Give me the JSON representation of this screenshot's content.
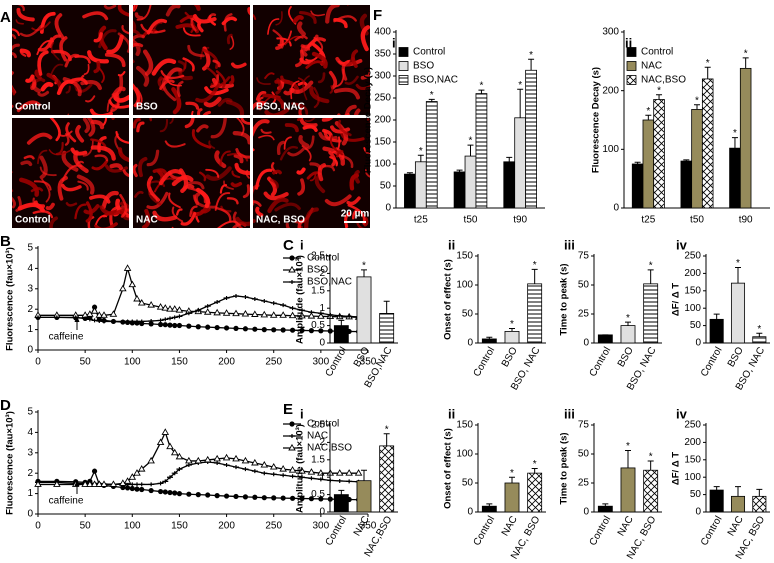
{
  "panel_labels": [
    "A",
    "B",
    "C",
    "D",
    "E",
    "F"
  ],
  "images": {
    "labels": [
      "Control",
      "BSO",
      "BSO, NAC",
      "Control",
      "NAC",
      "NAC, BSO"
    ],
    "scale_bar": "20 µm"
  },
  "chart_data": [
    {
      "type": "line",
      "ylabel": "Fluorescence (fau×10³)",
      "annotation": "caffeine",
      "xlim": [
        0,
        350
      ],
      "xticks": [
        0,
        50,
        100,
        150,
        200,
        250,
        300,
        350
      ],
      "ylim": [
        0,
        5
      ],
      "yticks": [
        0,
        1,
        2,
        3,
        4,
        5
      ],
      "x": [
        0,
        20,
        40,
        50,
        55,
        60,
        65,
        70,
        80,
        90,
        95,
        100,
        105,
        110,
        120,
        130,
        135,
        140,
        145,
        150,
        160,
        170,
        180,
        190,
        200,
        210,
        220,
        230,
        240,
        250,
        260,
        270,
        280,
        290,
        300,
        310,
        320,
        330,
        340
      ],
      "series": [
        {
          "name": "Control",
          "color": "#000000",
          "marker": "circle",
          "values": [
            1.6,
            1.6,
            1.58,
            1.55,
            1.6,
            2.1,
            1.5,
            1.45,
            1.4,
            1.37,
            1.35,
            1.33,
            1.32,
            1.3,
            1.28,
            1.25,
            1.24,
            1.22,
            1.2,
            1.2,
            1.17,
            1.14,
            1.12,
            1.1,
            1.08,
            1.06,
            1.04,
            1.02,
            1.0,
            0.99,
            0.98,
            0.97,
            0.96,
            0.95,
            0.94,
            0.93,
            0.92,
            0.91,
            0.9
          ]
        },
        {
          "name": "BSO",
          "color": "#000000",
          "marker": "triangle",
          "values": [
            1.7,
            1.7,
            1.7,
            1.7,
            1.75,
            1.9,
            1.7,
            1.7,
            1.75,
            3.0,
            4.0,
            3.2,
            2.5,
            2.3,
            2.2,
            2.1,
            2.05,
            2.0,
            2.0,
            1.95,
            1.9,
            1.88,
            1.85,
            1.82,
            1.8,
            1.78,
            1.76,
            1.74,
            1.72,
            1.7,
            1.7,
            1.68,
            1.67,
            1.66,
            1.65,
            1.64,
            1.63,
            1.62,
            1.6
          ]
        },
        {
          "name": "BSO,NAC",
          "color": "#000000",
          "marker": "dash",
          "values": [
            1.6,
            1.6,
            1.6,
            1.55,
            1.5,
            1.45,
            1.42,
            1.4,
            1.4,
            1.4,
            1.4,
            1.4,
            1.4,
            1.4,
            1.42,
            1.45,
            1.5,
            1.55,
            1.6,
            1.65,
            1.8,
            1.95,
            2.15,
            2.35,
            2.55,
            2.65,
            2.6,
            2.5,
            2.4,
            2.3,
            2.2,
            2.05,
            1.95,
            1.85,
            1.8,
            1.72,
            1.68,
            1.65,
            1.62
          ]
        }
      ]
    },
    {
      "type": "line",
      "ylabel": "Fluorescence (fau×10³)",
      "annotation": "caffeine",
      "xlim": [
        0,
        350
      ],
      "xticks": [
        0,
        50,
        100,
        150,
        200,
        250,
        300,
        350
      ],
      "ylim": [
        0,
        5
      ],
      "yticks": [
        0,
        1,
        2,
        3,
        4,
        5
      ],
      "x": [
        0,
        20,
        40,
        50,
        55,
        60,
        65,
        70,
        80,
        90,
        95,
        100,
        105,
        110,
        120,
        130,
        135,
        140,
        145,
        150,
        160,
        170,
        180,
        190,
        200,
        210,
        220,
        230,
        240,
        250,
        260,
        270,
        280,
        290,
        300,
        310,
        320,
        330,
        340
      ],
      "series": [
        {
          "name": "Control",
          "color": "#000000",
          "marker": "circle",
          "values": [
            1.6,
            1.6,
            1.58,
            1.55,
            1.6,
            2.1,
            1.45,
            1.4,
            1.35,
            1.3,
            1.28,
            1.25,
            1.22,
            1.2,
            1.15,
            1.1,
            1.08,
            1.05,
            1.03,
            1.0,
            0.97,
            0.95,
            0.93,
            0.9,
            0.88,
            0.86,
            0.84,
            0.82,
            0.8,
            0.79,
            0.78,
            0.77,
            0.76,
            0.75,
            0.74,
            0.73,
            0.72,
            0.71,
            0.7
          ]
        },
        {
          "name": "NAC",
          "color": "#000000",
          "marker": "dash",
          "values": [
            1.55,
            1.55,
            1.5,
            1.5,
            1.5,
            1.5,
            1.48,
            1.47,
            1.46,
            1.45,
            1.45,
            1.45,
            1.45,
            1.45,
            1.45,
            1.5,
            1.6,
            1.8,
            2.0,
            2.2,
            2.4,
            2.5,
            2.55,
            2.5,
            2.4,
            2.3,
            2.2,
            2.1,
            2.0,
            1.95,
            1.9,
            1.85,
            1.8,
            1.75,
            1.7,
            1.65,
            1.62,
            1.6,
            1.58
          ]
        },
        {
          "name": "NAC,BSO",
          "color": "#000000",
          "marker": "triangle",
          "values": [
            1.45,
            1.45,
            1.45,
            1.45,
            1.45,
            1.45,
            1.45,
            1.45,
            1.45,
            1.5,
            1.6,
            1.8,
            2.0,
            2.2,
            2.6,
            3.5,
            4.0,
            3.3,
            3.0,
            2.8,
            2.6,
            2.6,
            2.65,
            2.7,
            2.75,
            2.7,
            2.6,
            2.5,
            2.4,
            2.3,
            2.2,
            2.15,
            2.1,
            2.05,
            2.0,
            2.0,
            2.0,
            2.0,
            2.0
          ]
        }
      ]
    },
    {
      "type": "bar",
      "panel": "i",
      "ylabel": "Amplitude (fau×10³)",
      "ylim": [
        0,
        2.5
      ],
      "yticks": [
        0,
        0.5,
        1,
        1.5,
        2,
        2.5
      ],
      "categories": [
        "Control",
        "BSO",
        "BSO,NAC"
      ],
      "values": [
        0.5,
        1.9,
        0.85
      ],
      "errors": [
        0.15,
        0.2,
        0.35
      ],
      "fills": [
        "#000000",
        "#e0e0e0",
        "hstripe"
      ],
      "significant": [
        false,
        true,
        false
      ],
      "significance_mark": "*"
    },
    {
      "type": "bar",
      "panel": "ii",
      "ylabel": "Onset of effect (s)",
      "ylim": [
        0,
        150
      ],
      "yticks": [
        0,
        50,
        100,
        150
      ],
      "categories": [
        "Control",
        "BSO",
        "BSO, NAC"
      ],
      "values": [
        7,
        20,
        102
      ],
      "errors": [
        3,
        5,
        25
      ],
      "fills": [
        "#000000",
        "#e0e0e0",
        "hstripe"
      ],
      "significant": [
        false,
        true,
        true
      ],
      "significance_mark": "*"
    },
    {
      "type": "bar",
      "panel": "iii",
      "ylabel": "Time to peak (s)",
      "ylim": [
        0,
        75
      ],
      "yticks": [
        0,
        25,
        50,
        75
      ],
      "categories": [
        "Control",
        "BSO",
        "BSO, NAC"
      ],
      "values": [
        7,
        15,
        51
      ],
      "errors": [
        0,
        3,
        12
      ],
      "fills": [
        "#000000",
        "#e0e0e0",
        "hstripe"
      ],
      "significant": [
        false,
        true,
        true
      ],
      "significance_mark": "*"
    },
    {
      "type": "bar",
      "panel": "iv",
      "ylabel": "ΔF/ Δ T",
      "ylim": [
        0,
        250
      ],
      "yticks": [
        0,
        50,
        100,
        150,
        200,
        250
      ],
      "categories": [
        "Control",
        "BSO",
        "BSO, NAC"
      ],
      "values": [
        68,
        172,
        18
      ],
      "errors": [
        15,
        45,
        10
      ],
      "fills": [
        "#000000",
        "#e0e0e0",
        "hstripe"
      ],
      "significant": [
        false,
        true,
        true
      ],
      "significance_mark": "*"
    },
    {
      "type": "bar",
      "panel": "i",
      "ylabel": "Amplitude (fau×10³)",
      "ylim": [
        0,
        2.5
      ],
      "yticks": [
        0,
        0.5,
        1,
        1.5,
        2,
        2.5
      ],
      "categories": [
        "Control",
        "NAC",
        "NAC,BSO"
      ],
      "values": [
        0.5,
        0.9,
        1.9
      ],
      "errors": [
        0.12,
        0.3,
        0.35
      ],
      "fills": [
        "#000000",
        "#968b5b",
        "crosshatch"
      ],
      "significant": [
        false,
        false,
        true
      ],
      "significance_mark": "*"
    },
    {
      "type": "bar",
      "panel": "ii",
      "ylabel": "Onset of effect (s)",
      "ylim": [
        0,
        150
      ],
      "yticks": [
        0,
        50,
        100,
        150
      ],
      "categories": [
        "Control",
        "NAC",
        "NAC, BSO"
      ],
      "values": [
        10,
        50,
        67
      ],
      "errors": [
        4,
        10,
        8
      ],
      "fills": [
        "#000000",
        "#968b5b",
        "crosshatch"
      ],
      "significant": [
        false,
        true,
        true
      ],
      "significance_mark": "*"
    },
    {
      "type": "bar",
      "panel": "iii",
      "ylabel": "Time to peak (s)",
      "ylim": [
        0,
        75
      ],
      "yticks": [
        0,
        25,
        50,
        75
      ],
      "categories": [
        "Control",
        "NAC",
        "NAC, BSO"
      ],
      "values": [
        5,
        38,
        36
      ],
      "errors": [
        2,
        15,
        8
      ],
      "fills": [
        "#000000",
        "#968b5b",
        "crosshatch"
      ],
      "significant": [
        false,
        true,
        true
      ],
      "significance_mark": "*"
    },
    {
      "type": "bar",
      "panel": "iv",
      "ylabel": "ΔF/ Δ T",
      "ylim": [
        0,
        250
      ],
      "yticks": [
        0,
        50,
        100,
        150,
        200,
        250
      ],
      "categories": [
        "Control",
        "NAC",
        "NAC, BSO"
      ],
      "values": [
        63,
        45,
        45
      ],
      "errors": [
        10,
        28,
        20
      ],
      "fills": [
        "#000000",
        "#968b5b",
        "crosshatch"
      ],
      "significant": [
        false,
        false,
        false
      ],
      "significance_mark": "*"
    },
    {
      "type": "grouped_bar",
      "panel": "i",
      "ylabel": "Fluorescence Decay (s)",
      "ylim": [
        0,
        400
      ],
      "yticks": [
        0,
        50,
        100,
        150,
        200,
        250,
        300,
        350,
        400
      ],
      "categories": [
        "t25",
        "t50",
        "t90"
      ],
      "significance_mark": "*",
      "series": [
        {
          "name": "Control",
          "fill": "#000000",
          "values": [
            77,
            82,
            105
          ],
          "errors": [
            3,
            4,
            10
          ],
          "significant": [
            false,
            false,
            false
          ]
        },
        {
          "name": "BSO",
          "fill": "#e0e0e0",
          "values": [
            105,
            118,
            205
          ],
          "errors": [
            15,
            25,
            65
          ],
          "significant": [
            true,
            true,
            true
          ]
        },
        {
          "name": "BSO,NAC",
          "fill": "hstripe",
          "values": [
            242,
            260,
            313
          ],
          "errors": [
            5,
            8,
            25
          ],
          "significant": [
            true,
            true,
            true
          ]
        }
      ]
    },
    {
      "type": "grouped_bar",
      "panel": "ii",
      "ylabel": "Fluorescence Decay (s)",
      "ylim": [
        0,
        300
      ],
      "yticks": [
        0,
        100,
        200,
        300
      ],
      "categories": [
        "t25",
        "t50",
        "t90"
      ],
      "significance_mark": "*",
      "series": [
        {
          "name": "Control",
          "fill": "#000000",
          "values": [
            75,
            80,
            102
          ],
          "errors": [
            3,
            2,
            18
          ],
          "significant": [
            false,
            false,
            true
          ]
        },
        {
          "name": "NAC",
          "fill": "#968b5b",
          "values": [
            150,
            168,
            238
          ],
          "errors": [
            8,
            8,
            18
          ],
          "significant": [
            true,
            true,
            true
          ]
        },
        {
          "name": "NAC,BSO",
          "fill": "crosshatch",
          "values": [
            185,
            220,
            null
          ],
          "errors": [
            8,
            20,
            null
          ],
          "significant": [
            true,
            true,
            false
          ]
        }
      ]
    }
  ]
}
